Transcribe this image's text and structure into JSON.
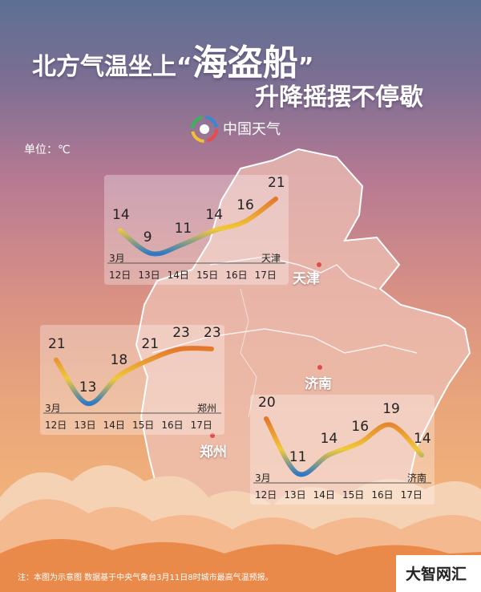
{
  "header": {
    "title_part1": "北方气温坐上",
    "title_quote_open": "“",
    "title_highlight": "海盗船",
    "title_quote_close": "”",
    "subtitle": "升降摇摆不停歇"
  },
  "brand": {
    "name": "中国天气"
  },
  "unit_label": "单位：℃",
  "charts": [
    {
      "city": "天津",
      "month_label": "3月",
      "days": [
        "12日",
        "13日",
        "14日",
        "15日",
        "16日",
        "17日"
      ],
      "values": [
        14,
        9,
        11,
        14,
        16,
        21
      ]
    },
    {
      "city": "郑州",
      "month_label": "3月",
      "days": [
        "12日",
        "13日",
        "14日",
        "15日",
        "16日",
        "17日"
      ],
      "values": [
        21,
        13,
        18,
        21,
        23,
        23
      ]
    },
    {
      "city": "济南",
      "month_label": "3月",
      "days": [
        "12日",
        "13日",
        "14日",
        "15日",
        "16日",
        "17日"
      ],
      "values": [
        20,
        11,
        14,
        16,
        19,
        14
      ]
    }
  ],
  "map_cities": [
    "天津",
    "济南",
    "郑州"
  ],
  "footnote": "注：本图为示意图  数据基于中央气象台3月11日8时城市最高气温预报。",
  "watermark": "大智网汇",
  "colors": {
    "curve_low": "#2f78c4",
    "curve_mid": "#f0c93a",
    "curve_high": "#e4772b",
    "city_dot": "#e04b4b"
  }
}
